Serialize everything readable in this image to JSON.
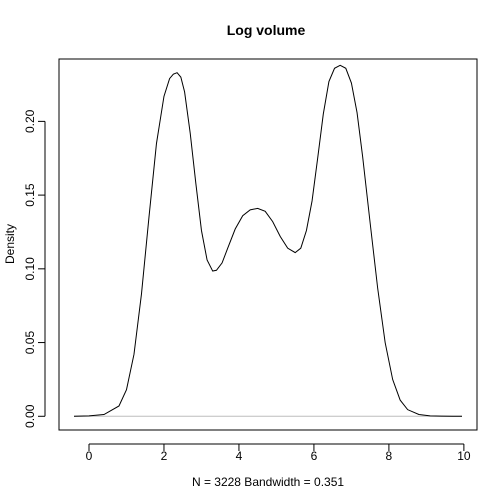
{
  "chart_data": {
    "type": "line",
    "title": "Log volume",
    "xlabel": "N = 3228   Bandwidth = 0.351",
    "ylabel": "Density",
    "xlim": [
      -0.8,
      10.35
    ],
    "ylim": [
      -0.0093,
      0.2423
    ],
    "x_ticks": [
      0,
      2,
      4,
      6,
      8,
      10
    ],
    "y_ticks": [
      0.0,
      0.05,
      0.1,
      0.15,
      0.2
    ],
    "x_tick_labels": [
      "0",
      "2",
      "4",
      "6",
      "8",
      "10"
    ],
    "y_tick_labels": [
      "0.00",
      "0.05",
      "0.10",
      "0.15",
      "0.20"
    ],
    "zero_line": true,
    "series": [
      {
        "x": [
          -0.4,
          0.0,
          0.4,
          0.8,
          1.0,
          1.2,
          1.4,
          1.6,
          1.8,
          2.0,
          2.15,
          2.25,
          2.35,
          2.45,
          2.55,
          2.7,
          2.85,
          3.0,
          3.15,
          3.3,
          3.4,
          3.55,
          3.7,
          3.9,
          4.1,
          4.3,
          4.5,
          4.7,
          4.9,
          5.1,
          5.3,
          5.5,
          5.65,
          5.8,
          5.95,
          6.1,
          6.25,
          6.4,
          6.55,
          6.7,
          6.85,
          7.0,
          7.15,
          7.3,
          7.5,
          7.7,
          7.9,
          8.1,
          8.3,
          8.5,
          8.8,
          9.1,
          9.4,
          9.7,
          9.95
        ],
        "y": [
          0.0,
          0.0003,
          0.0012,
          0.007,
          0.018,
          0.042,
          0.083,
          0.135,
          0.185,
          0.217,
          0.229,
          0.232,
          0.233,
          0.23,
          0.22,
          0.192,
          0.158,
          0.126,
          0.106,
          0.0985,
          0.099,
          0.104,
          0.114,
          0.127,
          0.136,
          0.14,
          0.141,
          0.139,
          0.132,
          0.122,
          0.114,
          0.111,
          0.114,
          0.126,
          0.146,
          0.175,
          0.205,
          0.227,
          0.236,
          0.238,
          0.236,
          0.226,
          0.206,
          0.176,
          0.131,
          0.087,
          0.05,
          0.025,
          0.011,
          0.0045,
          0.0012,
          0.0003,
          0.0001,
          0.0,
          0.0
        ]
      }
    ]
  }
}
